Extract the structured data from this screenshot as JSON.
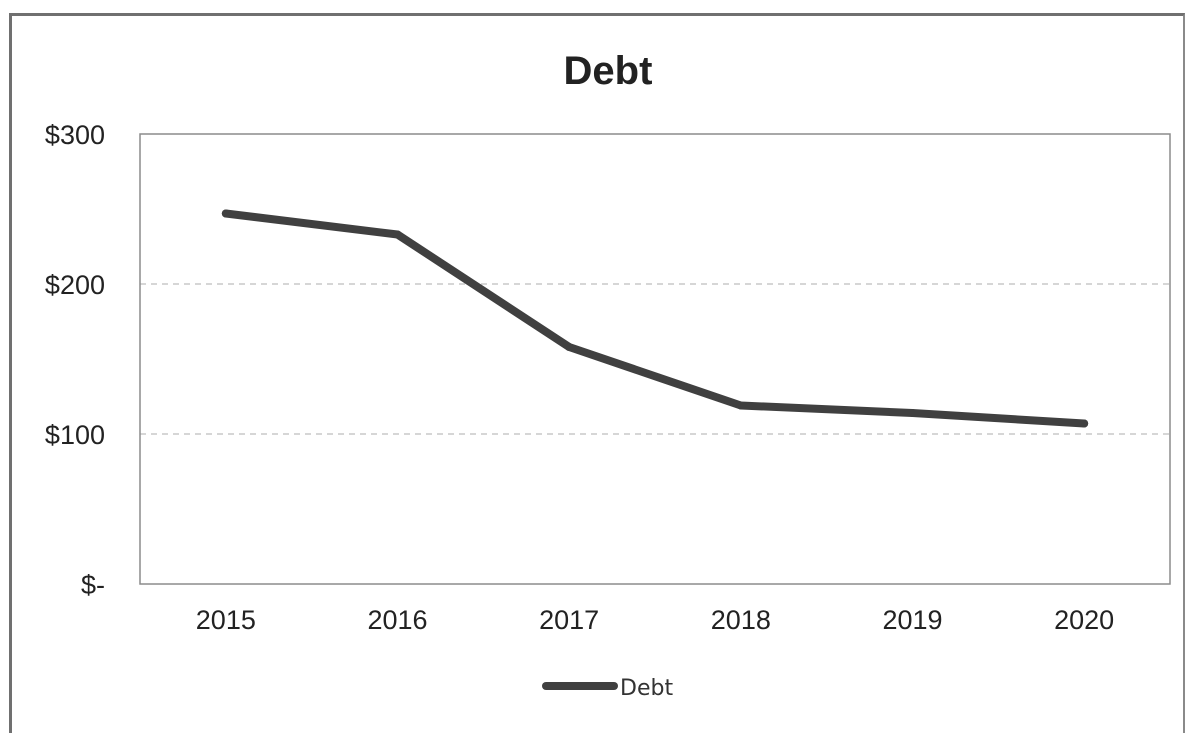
{
  "chart_data": {
    "type": "line",
    "title": "Debt",
    "categories": [
      "2015",
      "2016",
      "2017",
      "2018",
      "2019",
      "2020"
    ],
    "series": [
      {
        "name": "Debt",
        "values": [
          247,
          233,
          158,
          119,
          114,
          107
        ],
        "color": "#404040"
      }
    ],
    "ylim": [
      0,
      300
    ],
    "y_ticks": [
      {
        "value": 300,
        "label": "$300"
      },
      {
        "value": 200,
        "label": "$200"
      },
      {
        "value": 100,
        "label": "$100"
      },
      {
        "value": 0,
        "label": "$-"
      }
    ],
    "grid": {
      "horizontal": true,
      "style": "dashed",
      "color": "#c8c8c8"
    },
    "legend": {
      "position": "bottom",
      "entries": [
        "Debt"
      ]
    },
    "colors": {
      "line": "#404040",
      "axis": "#8c8c8c",
      "frame": "#707070"
    }
  }
}
